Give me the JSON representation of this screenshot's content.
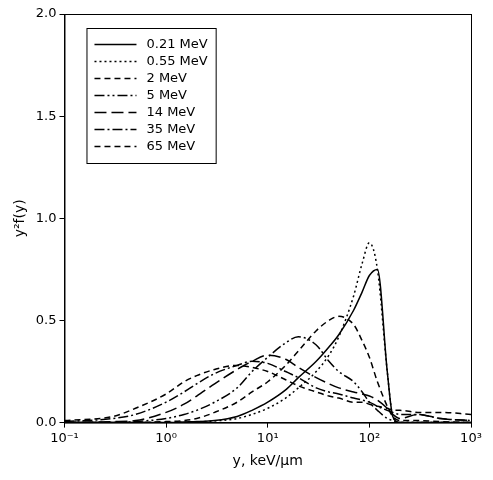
{
  "chart_data": {
    "type": "line",
    "x_label": "y, keV/µm",
    "y_label": "y²f(y)",
    "log": "x",
    "grid": false,
    "legend": "upper left",
    "xlim": [
      0.1,
      1000
    ],
    "xticks": [
      {
        "value": 0.1,
        "label": "10⁻¹"
      },
      {
        "value": 1,
        "label": "10⁰"
      },
      {
        "value": 10,
        "label": "10¹"
      },
      {
        "value": 100,
        "label": "10²"
      },
      {
        "value": 1000,
        "label": "10³"
      }
    ],
    "ylim": [
      0,
      2
    ],
    "yticks": [
      {
        "value": 0,
        "label": "0.0"
      },
      0.5,
      {
        "value": 1,
        "label": "1.0"
      },
      1.5,
      {
        "value": 2,
        "label": "2.0"
      }
    ],
    "x": [
      0.1,
      0.3,
      0.5,
      1,
      1.5,
      2,
      3,
      5,
      7,
      10,
      15,
      20,
      30,
      40,
      50,
      70,
      85,
      100,
      120,
      150,
      170,
      200,
      300,
      500,
      1000
    ],
    "series": [
      {
        "name": "0.21 MeV",
        "color": "#000000",
        "line_style": "solid",
        "values": [
          0,
          0,
          0,
          0,
          0.003,
          0.005,
          0.01,
          0.03,
          0.06,
          0.1,
          0.16,
          0.22,
          0.3,
          0.37,
          0.43,
          0.55,
          0.64,
          0.72,
          0.75,
          0.25,
          0.03,
          0,
          0,
          0,
          0
        ]
      },
      {
        "name": "0.55 MeV",
        "color": "#000000",
        "line_style": "dotted",
        "values": [
          0,
          0,
          0,
          0,
          0.002,
          0.004,
          0.008,
          0.02,
          0.04,
          0.07,
          0.12,
          0.17,
          0.25,
          0.33,
          0.42,
          0.62,
          0.78,
          0.88,
          0.75,
          0.25,
          0.03,
          0,
          0,
          0,
          0
        ]
      },
      {
        "name": "2 MeV",
        "color": "#000000",
        "line_style": "dashed",
        "values": [
          0,
          0,
          0,
          0.005,
          0.01,
          0.02,
          0.05,
          0.1,
          0.15,
          0.2,
          0.28,
          0.35,
          0.45,
          0.5,
          0.52,
          0.48,
          0.4,
          0.32,
          0.2,
          0.08,
          0.03,
          0.01,
          0.01,
          0.005,
          0
        ]
      },
      {
        "name": "5 MeV",
        "color": "#000000",
        "line_style": "dashdotdot",
        "values": [
          0,
          0,
          0.005,
          0.02,
          0.04,
          0.06,
          0.1,
          0.17,
          0.25,
          0.32,
          0.39,
          0.42,
          0.38,
          0.3,
          0.25,
          0.2,
          0.15,
          0.1,
          0.06,
          0.02,
          0.01,
          0,
          0,
          0,
          0
        ]
      },
      {
        "name": "14 MeV",
        "color": "#000000",
        "line_style": "longdash",
        "values": [
          0,
          0.005,
          0.01,
          0.05,
          0.09,
          0.13,
          0.19,
          0.26,
          0.3,
          0.33,
          0.31,
          0.27,
          0.22,
          0.19,
          0.17,
          0.15,
          0.14,
          0.13,
          0.11,
          0.07,
          0.04,
          0.02,
          0.04,
          0.02,
          0.01
        ]
      },
      {
        "name": "35 MeV",
        "color": "#000000",
        "line_style": "dashdot",
        "values": [
          0.005,
          0.02,
          0.04,
          0.1,
          0.15,
          0.19,
          0.24,
          0.28,
          0.3,
          0.29,
          0.25,
          0.22,
          0.17,
          0.15,
          0.14,
          0.12,
          0.11,
          0.1,
          0.08,
          0.06,
          0.05,
          0.04,
          0.04,
          0.02,
          0.01
        ]
      },
      {
        "name": "65 MeV",
        "color": "#000000",
        "line_style": "dashed",
        "values": [
          0.01,
          0.03,
          0.07,
          0.14,
          0.2,
          0.23,
          0.26,
          0.28,
          0.27,
          0.25,
          0.21,
          0.18,
          0.15,
          0.13,
          0.12,
          0.1,
          0.1,
          0.09,
          0.08,
          0.07,
          0.06,
          0.06,
          0.05,
          0.05,
          0.04
        ]
      }
    ]
  }
}
